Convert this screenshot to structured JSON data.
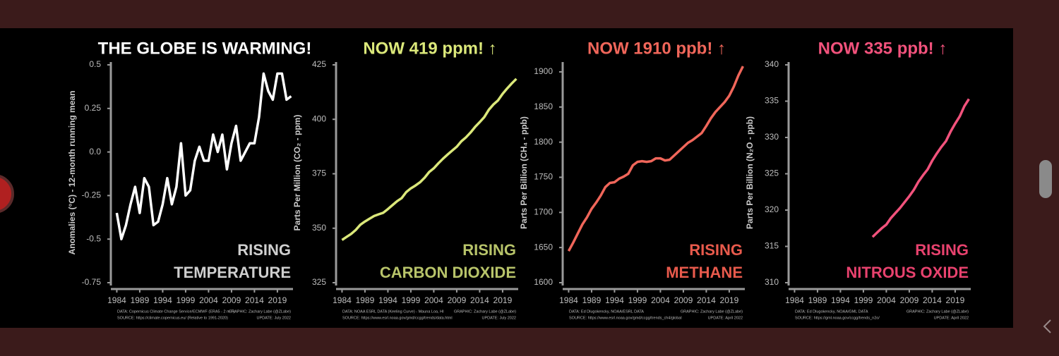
{
  "chart_data": [
    {
      "type": "line",
      "title": "THE GLOBE IS WARMING!",
      "title_color": "#ffffff",
      "ylabel": "Anomalies (°C) - 12-month running mean",
      "x": [
        1984,
        1985,
        1986,
        1987,
        1988,
        1989,
        1990,
        1991,
        1992,
        1993,
        1994,
        1995,
        1996,
        1997,
        1998,
        1999,
        2000,
        2001,
        2002,
        2003,
        2004,
        2005,
        2006,
        2007,
        2008,
        2009,
        2010,
        2011,
        2012,
        2013,
        2014,
        2015,
        2016,
        2017,
        2018,
        2019,
        2020,
        2021,
        2022
      ],
      "values": [
        -0.35,
        -0.5,
        -0.42,
        -0.3,
        -0.2,
        -0.35,
        -0.15,
        -0.2,
        -0.42,
        -0.4,
        -0.3,
        -0.15,
        -0.3,
        -0.2,
        0.05,
        -0.25,
        -0.22,
        -0.05,
        0.03,
        -0.05,
        -0.05,
        0.1,
        0.0,
        0.1,
        -0.1,
        0.05,
        0.15,
        -0.05,
        0.0,
        0.05,
        0.05,
        0.2,
        0.45,
        0.35,
        0.3,
        0.45,
        0.45,
        0.3,
        0.32
      ],
      "color": "#ffffff",
      "xlim": [
        1982.7,
        2022.4
      ],
      "xticks": [
        1984,
        1989,
        1994,
        1999,
        2004,
        2009,
        2014,
        2019
      ],
      "ylim": [
        -0.75,
        0.5
      ],
      "yticks": [
        -0.75,
        -0.5,
        -0.25,
        {
          "value": 0,
          "label": "0.0"
        },
        0.25,
        0.5
      ],
      "annotation": [
        "RISING",
        "TEMPERATURE"
      ],
      "annotation_color": "#cfcfcf",
      "notes": {
        "data": "DATA: Copernicus Climate Change Service/ECMWF (ERA5 - 2 m T)",
        "graphic": "GRAPHIC: Zachary Labe (@ZLabe)",
        "source": "SOURCE: https://climate.copernicus.eu/ (Relative to 1991-2020)",
        "update": "UPDATE: July 2022"
      }
    },
    {
      "type": "line",
      "title": "NOW 419 ppm! ↑",
      "title_color": "#dbe87a",
      "ylabel": "Parts Per Million (CO₂ - ppm)",
      "x": [
        1984,
        1985,
        1986,
        1987,
        1988,
        1989,
        1990,
        1991,
        1992,
        1993,
        1994,
        1995,
        1996,
        1997,
        1998,
        1999,
        2000,
        2001,
        2002,
        2003,
        2004,
        2005,
        2006,
        2007,
        2008,
        2009,
        2010,
        2011,
        2012,
        2013,
        2014,
        2015,
        2016,
        2017,
        2018,
        2019,
        2020,
        2021,
        2022
      ],
      "values": [
        344.6,
        346.0,
        347.4,
        349.2,
        351.6,
        353.1,
        354.4,
        355.6,
        356.4,
        357.1,
        358.8,
        360.6,
        362.4,
        363.8,
        366.6,
        368.3,
        369.6,
        371.1,
        373.2,
        375.8,
        377.5,
        379.8,
        381.9,
        383.8,
        385.6,
        387.4,
        389.9,
        391.7,
        393.9,
        396.5,
        398.7,
        401.0,
        404.4,
        406.8,
        408.7,
        411.7,
        414.2,
        416.5,
        418.6
      ],
      "color": "#dbe87a",
      "xlim": [
        1982.7,
        2022.4
      ],
      "xticks": [
        1984,
        1989,
        1994,
        1999,
        2004,
        2009,
        2014,
        2019
      ],
      "ylim": [
        325,
        425
      ],
      "yticks": [
        325,
        350,
        375,
        400,
        425
      ],
      "annotation": [
        "RISING",
        "CARBON DIOXIDE"
      ],
      "annotation_color": "#b8c46a",
      "notes": {
        "data": "DATA: NOAA ESRL DATA (Keeling Curve) - Mauna Loa, HI",
        "graphic": "GRAPHIC: Zachary Labe (@ZLabe)",
        "source": "SOURCE: https://www.esrl.noaa.gov/gmd/ccgg/trends/data.html",
        "update": "UPDATE: July 2022"
      }
    },
    {
      "type": "line",
      "title": "NOW 1910 ppb! ↑",
      "title_color": "#f0665a",
      "ylabel": "Parts Per Billion (CH₄ - ppb)",
      "x": [
        1984,
        1985,
        1986,
        1987,
        1988,
        1989,
        1990,
        1991,
        1992,
        1993,
        1994,
        1995,
        1996,
        1997,
        1998,
        1999,
        2000,
        2001,
        2002,
        2003,
        2004,
        2005,
        2006,
        2007,
        2008,
        2009,
        2010,
        2011,
        2012,
        2013,
        2014,
        2015,
        2016,
        2017,
        2018,
        2019,
        2020,
        2021,
        2022
      ],
      "values": [
        1645,
        1657,
        1670,
        1683,
        1693,
        1705,
        1714,
        1724,
        1736,
        1742,
        1743,
        1748,
        1751,
        1755,
        1767,
        1772,
        1773,
        1772,
        1773,
        1777,
        1777,
        1774,
        1775,
        1781,
        1787,
        1793,
        1799,
        1803,
        1808,
        1813,
        1823,
        1834,
        1843,
        1850,
        1857,
        1866,
        1879,
        1895,
        1908
      ],
      "color": "#f0665a",
      "xlim": [
        1982.7,
        2022.4
      ],
      "xticks": [
        1984,
        1989,
        1994,
        1999,
        2004,
        2009,
        2014,
        2019
      ],
      "ylim": [
        1600,
        1910
      ],
      "yticks": [
        1600,
        1650,
        1700,
        1750,
        1800,
        1850,
        1900
      ],
      "annotation": [
        "RISING",
        "METHANE"
      ],
      "annotation_color": "#e85a4c",
      "notes": {
        "data": "DATA: Ed Dlugokencky, NOAA/ESRL DATA",
        "graphic": "GRAPHIC: Zachary Labe (@ZLabe)",
        "source": "SOURCE: https://www.esrl.noaa.gov/gmd/ccgg/trends_ch4/global",
        "update": "UPDATE: April 2022"
      }
    },
    {
      "type": "line",
      "title": "NOW 335 ppb! ↑",
      "title_color": "#f2527c",
      "ylabel": "Parts Per Billion (N₂O - ppb)",
      "x": [
        2001,
        2002,
        2003,
        2004,
        2005,
        2006,
        2007,
        2008,
        2009,
        2010,
        2011,
        2012,
        2013,
        2014,
        2015,
        2016,
        2017,
        2018,
        2019,
        2020,
        2021,
        2022
      ],
      "values": [
        316.3,
        316.9,
        317.5,
        318.0,
        318.9,
        319.6,
        320.3,
        321.1,
        321.9,
        322.8,
        323.9,
        324.8,
        325.6,
        326.8,
        327.8,
        328.7,
        329.5,
        330.8,
        331.9,
        332.9,
        334.3,
        335.3
      ],
      "color": "#f2527c",
      "xlim": [
        1982.7,
        2022.4
      ],
      "xticks": [
        1984,
        1989,
        1994,
        1999,
        2004,
        2009,
        2014,
        2019
      ],
      "ylim": [
        310,
        340
      ],
      "yticks": [
        310,
        315,
        320,
        325,
        330,
        335,
        340
      ],
      "annotation": [
        "RISING",
        "NITROUS OXIDE"
      ],
      "annotation_color": "#e8426e",
      "notes": {
        "data": "DATA: Ed Dlugokencky, NOAA/GML DATA",
        "graphic": "GRAPHIC: Zachary Labe (@ZLabe)",
        "source": "SOURCE: https://gml.noaa.gov/ccgg/trends_n2o/",
        "update": "UPDATE: April 2022"
      }
    }
  ]
}
